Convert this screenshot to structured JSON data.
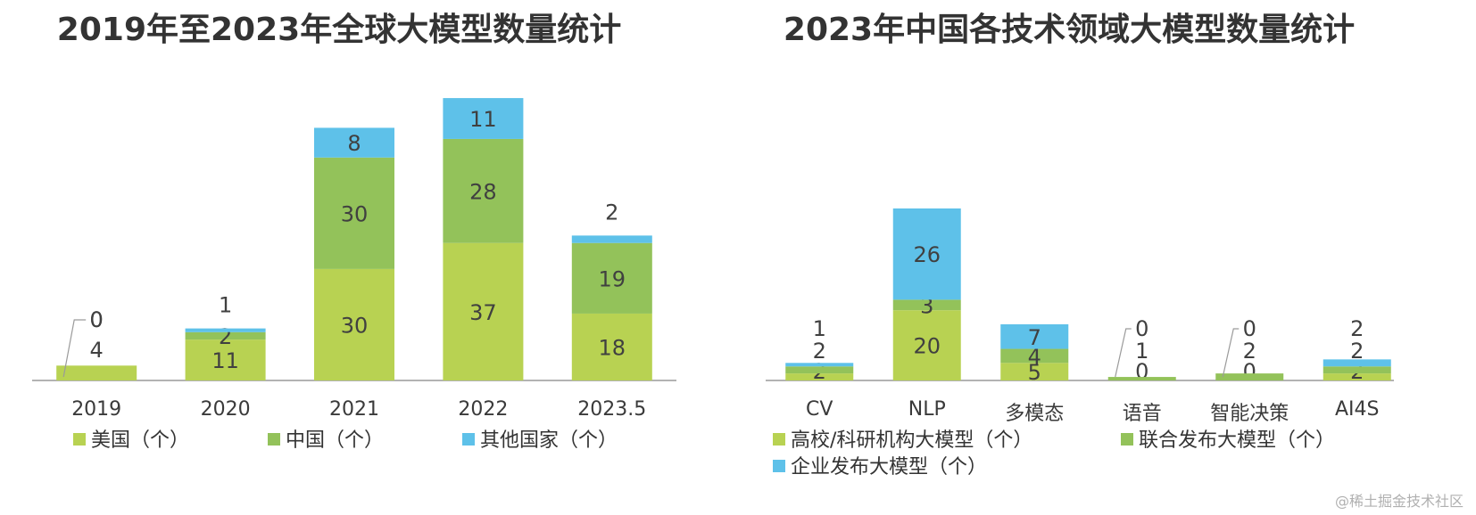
{
  "watermark": "@稀土掘金技术社区",
  "chart_data": [
    {
      "type": "bar",
      "stacked": true,
      "title": "2019年至2023年全球大模型数量统计",
      "categories": [
        "2019",
        "2020",
        "2021",
        "2022",
        "2023.5"
      ],
      "series": [
        {
          "name": "美国（个）",
          "color": "#b8d252",
          "values": [
            4,
            11,
            30,
            37,
            18
          ]
        },
        {
          "name": "中国（个）",
          "color": "#93c25a",
          "values": [
            0,
            2,
            30,
            28,
            19
          ]
        },
        {
          "name": "其他国家（个）",
          "color": "#5ec1e9",
          "values": [
            0,
            1,
            8,
            11,
            2
          ]
        }
      ],
      "xlabel": "",
      "ylabel": "",
      "ylim": [
        0,
        80
      ],
      "grid": false,
      "legend_position": "bottom"
    },
    {
      "type": "bar",
      "stacked": true,
      "title": "2023年中国各技术领域大模型数量统计",
      "categories": [
        "CV",
        "NLP",
        "多模态",
        "语音",
        "智能决策",
        "AI4S"
      ],
      "series": [
        {
          "name": "高校/科研机构大模型（个）",
          "color": "#b8d252",
          "values": [
            2,
            20,
            5,
            0,
            0,
            2
          ]
        },
        {
          "name": "联合发布大模型（个）",
          "color": "#93c25a",
          "values": [
            2,
            3,
            4,
            1,
            2,
            2
          ]
        },
        {
          "name": "企业发布大模型（个）",
          "color": "#5ec1e9",
          "values": [
            1,
            26,
            7,
            0,
            0,
            2
          ]
        }
      ],
      "xlabel": "",
      "ylabel": "",
      "ylim": [
        0,
        55
      ],
      "grid": false,
      "legend_position": "bottom"
    }
  ]
}
